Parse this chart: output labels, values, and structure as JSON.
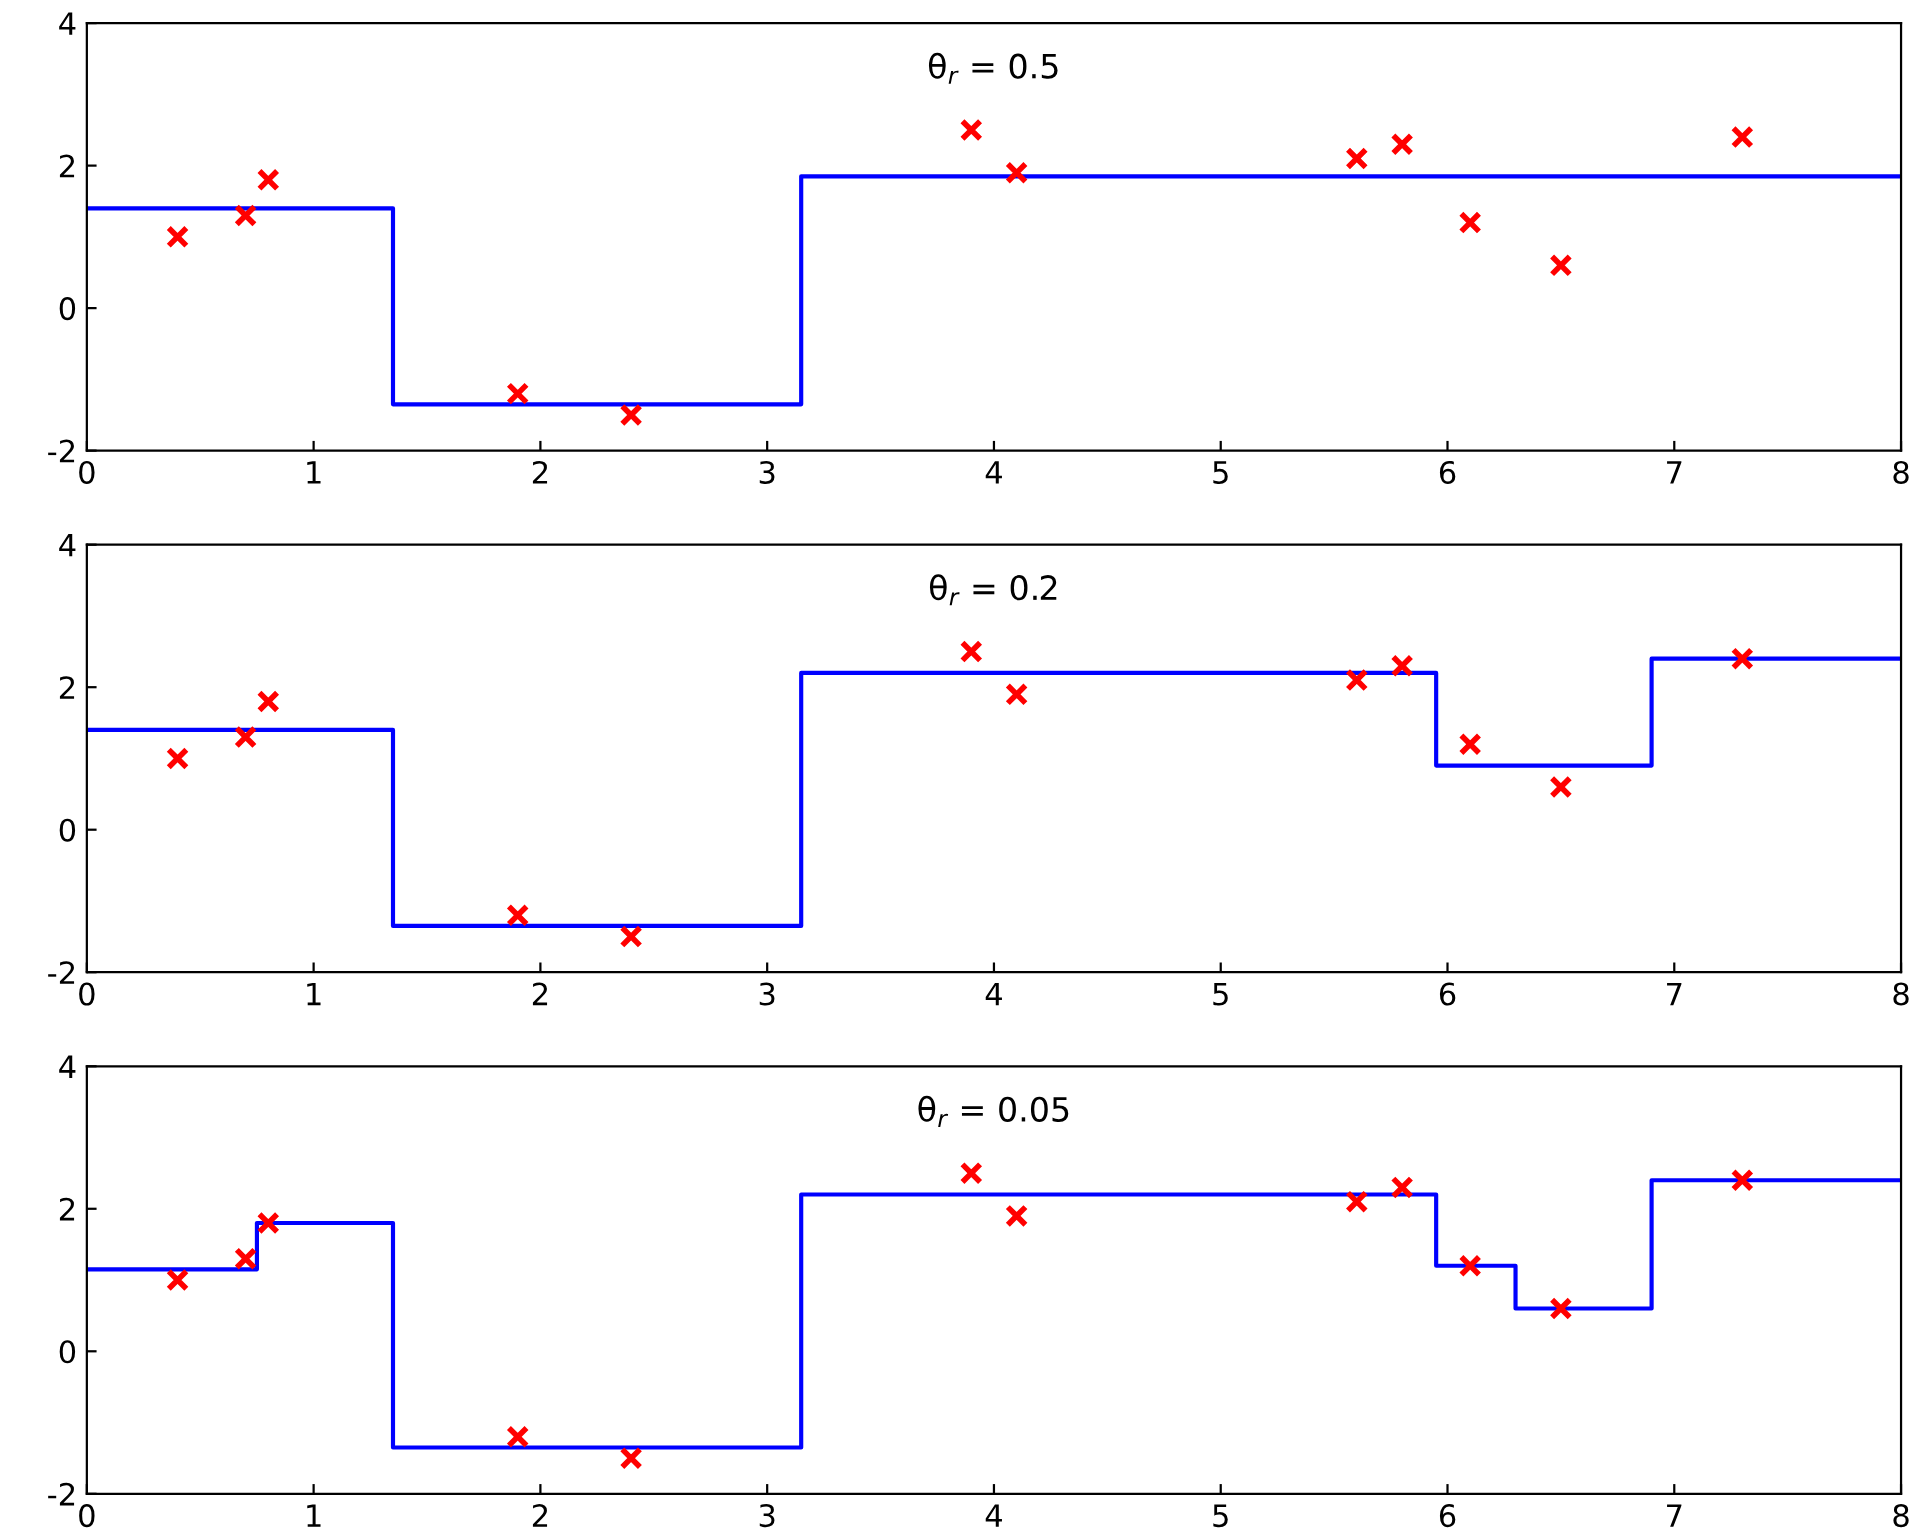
{
  "chart_data": [
    {
      "type": "scatter",
      "title": "θ$_{r}$ = 0.5",
      "xlim": [
        0,
        8
      ],
      "ylim": [
        -2,
        4
      ],
      "xticks": [
        0,
        1,
        2,
        3,
        4,
        5,
        6,
        7,
        8
      ],
      "yticks": [
        -2,
        0,
        2,
        4
      ],
      "grid": false,
      "legend": false,
      "series": [
        {
          "color": "#ff0000",
          "marker": "cross",
          "x": [
            0.4,
            0.7,
            0.8,
            1.9,
            2.4,
            3.9,
            4.1,
            5.6,
            5.8,
            6.1,
            6.5,
            7.3
          ],
          "values": [
            1.0,
            1.3,
            1.8,
            -1.2,
            -1.5,
            2.5,
            1.9,
            2.1,
            2.3,
            1.2,
            0.6,
            2.4
          ]
        },
        {
          "type": "step",
          "color": "#0000ff",
          "line_style": "solid",
          "x": [
            0,
            1.35,
            3.15,
            8
          ],
          "values": [
            1.4,
            -1.35,
            1.85,
            1.85
          ]
        }
      ]
    },
    {
      "type": "scatter",
      "title": "θ$_{r}$ = 0.2",
      "xlim": [
        0,
        8
      ],
      "ylim": [
        -2,
        4
      ],
      "xticks": [
        0,
        1,
        2,
        3,
        4,
        5,
        6,
        7,
        8
      ],
      "yticks": [
        -2,
        0,
        2,
        4
      ],
      "grid": false,
      "legend": false,
      "series": [
        {
          "color": "#ff0000",
          "marker": "cross",
          "x": [
            0.4,
            0.7,
            0.8,
            1.9,
            2.4,
            3.9,
            4.1,
            5.6,
            5.8,
            6.1,
            6.5,
            7.3
          ],
          "values": [
            1.0,
            1.3,
            1.8,
            -1.2,
            -1.5,
            2.5,
            1.9,
            2.1,
            2.3,
            1.2,
            0.6,
            2.4
          ]
        },
        {
          "type": "step",
          "color": "#0000ff",
          "line_style": "solid",
          "x": [
            0,
            1.35,
            3.15,
            5.95,
            6.9,
            8
          ],
          "values": [
            1.4,
            -1.35,
            2.2,
            0.9,
            2.4,
            2.4
          ]
        }
      ]
    },
    {
      "type": "scatter",
      "title": "θ$_{r}$ = 0.05",
      "xlim": [
        0,
        8
      ],
      "ylim": [
        -2,
        4
      ],
      "xticks": [
        0,
        1,
        2,
        3,
        4,
        5,
        6,
        7,
        8
      ],
      "yticks": [
        -2,
        0,
        2,
        4
      ],
      "grid": false,
      "legend": false,
      "series": [
        {
          "color": "#ff0000",
          "marker": "cross",
          "x": [
            0.4,
            0.7,
            0.8,
            1.9,
            2.4,
            3.9,
            4.1,
            5.6,
            5.8,
            6.1,
            6.5,
            7.3
          ],
          "values": [
            1.0,
            1.3,
            1.8,
            -1.2,
            -1.5,
            2.5,
            1.9,
            2.1,
            2.3,
            1.2,
            0.6,
            2.4
          ]
        },
        {
          "type": "step",
          "color": "#0000ff",
          "line_style": "solid",
          "x": [
            0,
            0.75,
            1.35,
            3.15,
            5.95,
            6.3,
            6.9,
            8
          ],
          "values": [
            1.15,
            1.8,
            -1.35,
            2.2,
            1.2,
            0.6,
            2.4,
            2.4
          ]
        }
      ]
    }
  ]
}
